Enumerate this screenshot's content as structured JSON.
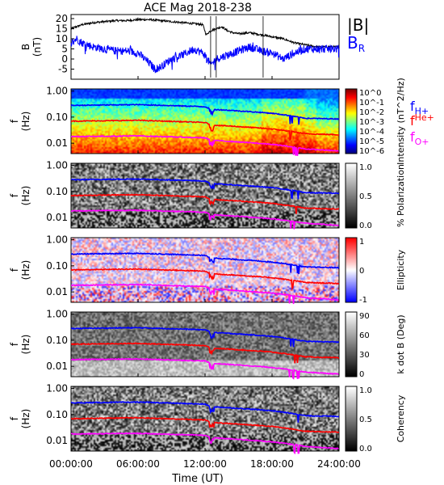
{
  "title": "ACE Mag 2018-238",
  "x_axis": {
    "label": "Time (UT)",
    "ticks": [
      "00:00:00",
      "06:00:00",
      "12:00:00",
      "18:00:00",
      "24:00:00"
    ],
    "range_hours": [
      0,
      24
    ]
  },
  "colors": {
    "B_total": "#000000",
    "B_R": "#0000ff",
    "f_H": "#0000ff",
    "f_He": "#ff0000",
    "f_O": "#ff00ff"
  },
  "freq_ticks": [
    "1.00",
    "0.10",
    "0.01"
  ],
  "chart_data": [
    {
      "type": "line",
      "ylabel": "B (nT)",
      "ylim": [
        -10,
        22
      ],
      "yticks": [
        20,
        15,
        10,
        5,
        0,
        -5
      ],
      "legend": [
        "|B|",
        "B_R"
      ],
      "series": [
        {
          "name": "|B|",
          "x": [
            0,
            0.5,
            1,
            2,
            3,
            4,
            5,
            6,
            7,
            8,
            9,
            10,
            11,
            11.8,
            12.1,
            12.5,
            13,
            13.5,
            14,
            14.5,
            15,
            16,
            17,
            18,
            19,
            20,
            21,
            22,
            23,
            24
          ],
          "values": [
            15,
            16,
            17,
            18,
            18.5,
            19,
            19,
            19.5,
            19.5,
            19,
            18.5,
            18,
            17.5,
            17,
            12,
            14,
            15,
            16,
            14,
            13,
            12.5,
            13,
            12,
            11,
            10,
            8,
            7,
            6,
            6,
            6
          ]
        },
        {
          "name": "B_R",
          "x": [
            0,
            0.5,
            1,
            2,
            3,
            4,
            5,
            6,
            7,
            7.5,
            8,
            9,
            10,
            11,
            11.8,
            12.1,
            12.5,
            13,
            14,
            15,
            16,
            17,
            18,
            19,
            20,
            21,
            22,
            23,
            24
          ],
          "values": [
            8,
            10,
            8,
            6,
            5,
            4,
            4,
            3,
            -2,
            -5,
            -4,
            0,
            2,
            5,
            3,
            1,
            -3,
            0,
            2,
            4,
            6,
            4,
            3,
            0,
            3,
            5,
            5,
            5,
            5
          ]
        }
      ]
    },
    {
      "type": "heatmap",
      "ylabel": "f (Hz)",
      "yscale": "log",
      "ylim": [
        0.004,
        1.0
      ],
      "colorbar": {
        "label": "Intensity (nT^2/Hz)",
        "ticks": [
          "10^0",
          "10^-1",
          "10^-2",
          "10^-3",
          "10^-4",
          "10^-5",
          "10^-6"
        ]
      },
      "series": [
        {
          "name": "f_H+",
          "x": [
            0,
            6,
            12,
            12.5,
            18,
            21,
            24
          ],
          "values": [
            0.28,
            0.3,
            0.25,
            0.2,
            0.14,
            0.09,
            0.085
          ]
        },
        {
          "name": "f_He+",
          "x": [
            0,
            6,
            12,
            12.5,
            18,
            21,
            24
          ],
          "values": [
            0.07,
            0.075,
            0.062,
            0.05,
            0.035,
            0.023,
            0.021
          ]
        },
        {
          "name": "f_O+",
          "x": [
            0,
            6,
            12,
            12.5,
            18,
            21,
            24
          ],
          "values": [
            0.018,
            0.019,
            0.016,
            0.013,
            0.009,
            0.006,
            0.005
          ]
        }
      ]
    },
    {
      "type": "heatmap",
      "ylabel": "f (Hz)",
      "yscale": "log",
      "colorbar": {
        "label": "% Polarization",
        "ticks": [
          "1.0",
          "0.5",
          "0.0"
        ]
      }
    },
    {
      "type": "heatmap",
      "ylabel": "f (Hz)",
      "yscale": "log",
      "colorbar": {
        "label": "Ellipticity",
        "ticks": [
          "1",
          "0",
          "-1"
        ]
      }
    },
    {
      "type": "heatmap",
      "ylabel": "f (Hz)",
      "yscale": "log",
      "colorbar": {
        "label": "k dot B (Deg)",
        "ticks": [
          "90",
          "60",
          "30",
          "0"
        ]
      }
    },
    {
      "type": "heatmap",
      "ylabel": "f (Hz)",
      "yscale": "log",
      "colorbar": {
        "label": "Coherency",
        "ticks": [
          "1.0",
          "0.5",
          "0.0"
        ]
      }
    }
  ],
  "legend_labels": {
    "b_total": "|B|",
    "b_r": "B",
    "b_r_sub": "R",
    "f_h": "f",
    "f_h_sub": "H+",
    "f_he": "f",
    "f_he_sub": "He+",
    "f_o": "f",
    "f_o_sub": "O+"
  },
  "y_label_b": "B",
  "y_label_b_unit": "(nT)",
  "y_label_f": "f",
  "y_label_f_unit": "(Hz)"
}
